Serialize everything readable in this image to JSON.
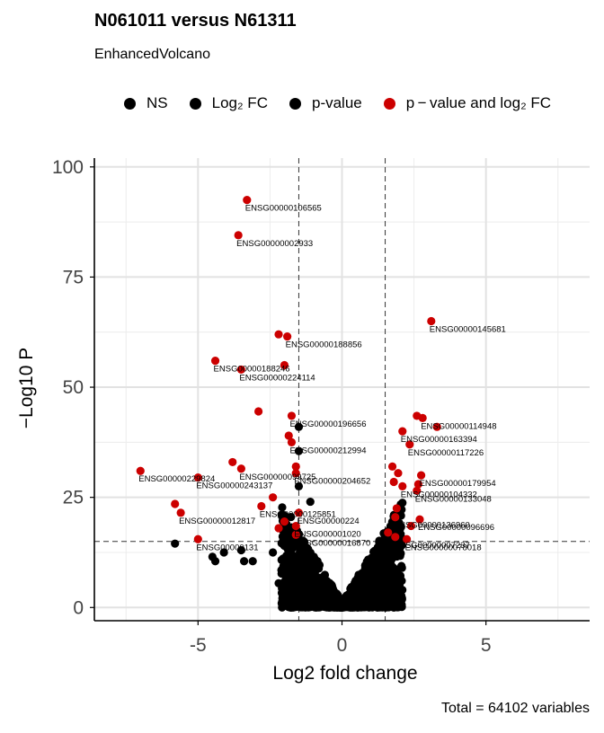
{
  "title": "N061011 versus N61311",
  "subtitle": "EnhancedVolcano",
  "caption": "Total = 64102 variables",
  "legend": [
    {
      "label": "NS",
      "color": "#000000"
    },
    {
      "label": "Log₂ FC",
      "color": "#000000"
    },
    {
      "label": "p-value",
      "color": "#000000"
    },
    {
      "label": "p − value and log₂ FC",
      "color": "#cc0000"
    }
  ],
  "chart_data": {
    "type": "scatter",
    "title": "N061011 versus N61311",
    "subtitle": "EnhancedVolcano",
    "xlabel": "Log2 fold change",
    "ylabel": "−Log10 P",
    "xlim": [
      -8.6,
      8.6
    ],
    "ylim": [
      -3,
      102
    ],
    "xticks": [
      -5,
      0,
      5
    ],
    "xtick_labels": [
      "-5",
      "0",
      "5"
    ],
    "yticks": [
      0,
      25,
      50,
      75,
      100
    ],
    "ytick_labels": [
      "0",
      "25",
      "50",
      "75",
      "100"
    ],
    "fc_cutoff": 1.5,
    "p_cutoff": 15,
    "colors": {
      "ns": "#000000",
      "sig": "#cc0000"
    },
    "significant_points": [
      {
        "x": -3.3,
        "y": 92.5,
        "label": "ENSG00000106565"
      },
      {
        "x": -3.6,
        "y": 84.5,
        "label": "ENSG00000002933"
      },
      {
        "x": -2.2,
        "y": 62.0,
        "label": ""
      },
      {
        "x": -1.9,
        "y": 61.5,
        "label": "ENSG00000188856"
      },
      {
        "x": 3.1,
        "y": 65.0,
        "label": "ENSG00000145681"
      },
      {
        "x": -4.4,
        "y": 56.0,
        "label": "ENSG00000188246"
      },
      {
        "x": -2.0,
        "y": 55.0,
        "label": ""
      },
      {
        "x": -3.5,
        "y": 54.0,
        "label": "ENSG00000224114"
      },
      {
        "x": -2.9,
        "y": 44.5,
        "label": ""
      },
      {
        "x": -1.75,
        "y": 43.5,
        "label": "ENSG00000196656"
      },
      {
        "x": 2.6,
        "y": 43.5,
        "label": ""
      },
      {
        "x": 2.8,
        "y": 43.0,
        "label": "ENSG00000114948"
      },
      {
        "x": 3.3,
        "y": 41.0,
        "label": ""
      },
      {
        "x": 2.1,
        "y": 40.0,
        "label": "ENSG00000163394"
      },
      {
        "x": -1.85,
        "y": 39.0,
        "label": ""
      },
      {
        "x": -1.75,
        "y": 37.5,
        "label": "ENSG00000212994"
      },
      {
        "x": 2.35,
        "y": 37.0,
        "label": "ENSG00000117226"
      },
      {
        "x": -3.8,
        "y": 33.0,
        "label": ""
      },
      {
        "x": -3.5,
        "y": 31.5,
        "label": "ENSG00000099725"
      },
      {
        "x": -1.6,
        "y": 32.0,
        "label": ""
      },
      {
        "x": -1.6,
        "y": 30.5,
        "label": "ENSG00000204652"
      },
      {
        "x": -7.0,
        "y": 31.0,
        "label": "ENSG00000229824"
      },
      {
        "x": -5.0,
        "y": 29.5,
        "label": "ENSG00000243137"
      },
      {
        "x": 1.75,
        "y": 32.0,
        "label": ""
      },
      {
        "x": 1.95,
        "y": 30.5,
        "label": ""
      },
      {
        "x": 2.75,
        "y": 30.0,
        "label": "ENSG00000179954"
      },
      {
        "x": 1.8,
        "y": 28.5,
        "label": ""
      },
      {
        "x": 2.1,
        "y": 27.5,
        "label": "ENSG00000104332"
      },
      {
        "x": 2.65,
        "y": 28.0,
        "label": ""
      },
      {
        "x": 2.6,
        "y": 26.5,
        "label": "ENSG00000133048"
      },
      {
        "x": -2.4,
        "y": 25.0,
        "label": ""
      },
      {
        "x": -2.8,
        "y": 23.0,
        "label": "ENSG00000125851"
      },
      {
        "x": -5.8,
        "y": 23.5,
        "label": ""
      },
      {
        "x": -5.6,
        "y": 21.5,
        "label": "ENSG00000012817"
      },
      {
        "x": -1.5,
        "y": 21.5,
        "label": "ENSG00000224"
      },
      {
        "x": 1.9,
        "y": 22.5,
        "label": ""
      },
      {
        "x": 1.85,
        "y": 20.5,
        "label": "ENSG00000136960"
      },
      {
        "x": 2.7,
        "y": 20.0,
        "label": "ENSG00000096696"
      },
      {
        "x": 2.4,
        "y": 18.5,
        "label": ""
      },
      {
        "x": -1.6,
        "y": 18.5,
        "label": "ENSG000001020"
      },
      {
        "x": -2.0,
        "y": 19.5,
        "label": ""
      },
      {
        "x": -2.2,
        "y": 18.0,
        "label": ""
      },
      {
        "x": -1.6,
        "y": 16.5,
        "label": "ENSG00000016870"
      },
      {
        "x": 1.6,
        "y": 17.0,
        "label": ""
      },
      {
        "x": 1.85,
        "y": 16.0,
        "label": "ENSG00000007237"
      },
      {
        "x": 2.25,
        "y": 15.5,
        "label": "ENSG00000078018"
      },
      {
        "x": -5.0,
        "y": 15.5,
        "label": "ENSG00000131"
      }
    ],
    "highlighted_ns_points": [
      {
        "x": -1.5,
        "y": 41.0
      },
      {
        "x": -1.5,
        "y": 35.5
      },
      {
        "x": -1.5,
        "y": 27.5
      },
      {
        "x": -1.1,
        "y": 24.0
      },
      {
        "x": -5.8,
        "y": 14.5
      },
      {
        "x": -4.5,
        "y": 11.5
      },
      {
        "x": -4.1,
        "y": 12.5
      },
      {
        "x": -3.5,
        "y": 13.0
      },
      {
        "x": -3.4,
        "y": 10.5
      },
      {
        "x": -3.1,
        "y": 10.5
      },
      {
        "x": -2.1,
        "y": 8.5
      },
      {
        "x": -2.2,
        "y": 5.5
      },
      {
        "x": -2.4,
        "y": 12.5
      },
      {
        "x": -4.4,
        "y": 10.5
      }
    ]
  }
}
